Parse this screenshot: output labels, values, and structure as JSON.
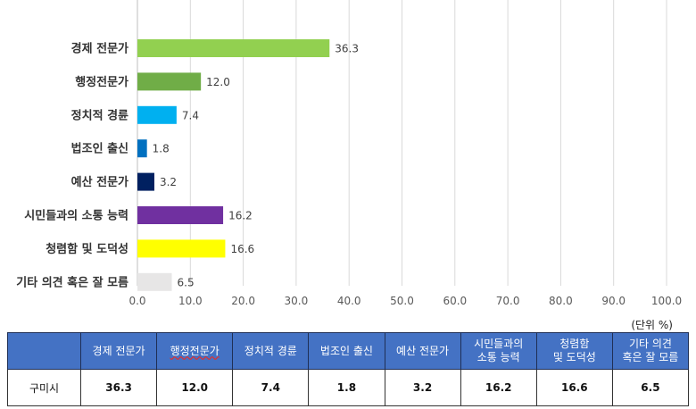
{
  "chart_data": {
    "type": "bar",
    "orientation": "horizontal",
    "categories": [
      "경제 전문가",
      "행정전문가",
      "정치적 경륜",
      "법조인 출신",
      "예산 전문가",
      "시민들과의 소통 능력",
      "청렴함 및 도덕성",
      "기타 의견 혹은 잘 모름"
    ],
    "values": [
      36.3,
      12.0,
      7.4,
      1.8,
      3.2,
      16.2,
      16.6,
      6.5
    ],
    "value_labels": [
      "36.3",
      "12.0",
      "7.4",
      "1.8",
      "3.2",
      "16.2",
      "16.6",
      "6.5"
    ],
    "colors": [
      "#92d050",
      "#70ad47",
      "#00b0f0",
      "#0070c0",
      "#002060",
      "#7030a0",
      "#ffff00",
      "#e7e6e6"
    ],
    "xlim": [
      0,
      100
    ],
    "x_ticks": [
      "0.0",
      "10.0",
      "20.0",
      "30.0",
      "40.0",
      "50.0",
      "60.0",
      "70.0",
      "80.0",
      "90.0",
      "100.0"
    ],
    "grid": true,
    "title": "",
    "xlabel": "",
    "ylabel": ""
  },
  "unit_label": "(단위 %)",
  "table": {
    "headers": [
      "",
      "경제 전문가",
      "행정전문가",
      "정치적 경륜",
      "법조인 출신",
      "예산 전문가",
      "시민들과의\n소통 능력",
      "청렴함\n및 도덕성",
      "기타 의견\n혹은 잘 모름"
    ],
    "rows": [
      {
        "label": "구미시",
        "cells": [
          "36.3",
          "12.0",
          "7.4",
          "1.8",
          "3.2",
          "16.2",
          "16.6",
          "6.5"
        ]
      }
    ]
  }
}
